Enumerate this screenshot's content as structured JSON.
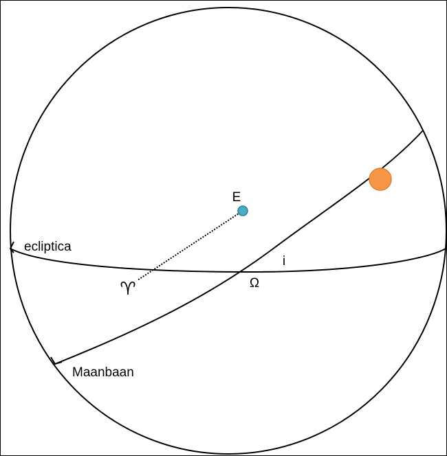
{
  "labels": {
    "earth": "E",
    "ecliptic": "ecliptica",
    "inclination": "i",
    "node": "Ω",
    "vernal_point": "♈",
    "moon_orbit": "Maanbaan"
  }
}
